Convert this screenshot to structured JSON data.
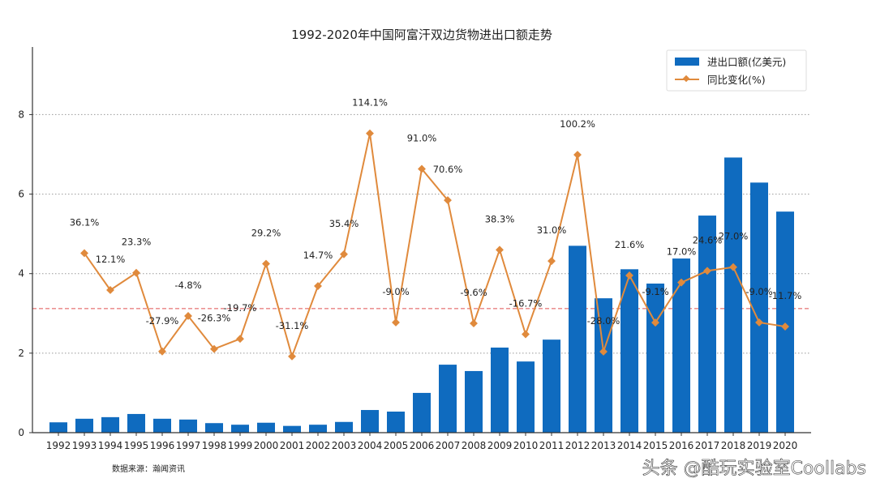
{
  "chart_data": {
    "type": "bar+line",
    "title": "1992-2020年中国阿富汗双边货物进出口额走势",
    "categories": [
      "1992",
      "1993",
      "1994",
      "1995",
      "1996",
      "1997",
      "1998",
      "1999",
      "2000",
      "2001",
      "2002",
      "2003",
      "2004",
      "2005",
      "2006",
      "2007",
      "2008",
      "2009",
      "2010",
      "2011",
      "2012",
      "2013",
      "2014",
      "2015",
      "2016",
      "2017",
      "2018",
      "2019",
      "2020"
    ],
    "series": [
      {
        "name": "进出口额(亿美元)",
        "type": "bar",
        "color": "#0f6bbf",
        "values": [
          0.26,
          0.35,
          0.39,
          0.47,
          0.35,
          0.33,
          0.24,
          0.2,
          0.25,
          0.17,
          0.2,
          0.27,
          0.57,
          0.53,
          1.0,
          1.71,
          1.55,
          2.14,
          1.79,
          2.34,
          4.7,
          3.38,
          4.11,
          3.75,
          4.38,
          5.46,
          6.92,
          6.29,
          5.56
        ]
      },
      {
        "name": "同比变化(%)",
        "type": "line",
        "color": "#e08a3c",
        "axis": "secondary-hidden",
        "values": [
          null,
          36.1,
          12.1,
          23.3,
          -27.9,
          -4.8,
          -26.3,
          -19.7,
          29.2,
          -31.1,
          14.7,
          35.4,
          114.1,
          -9.0,
          91.0,
          70.6,
          -9.6,
          38.3,
          -16.7,
          31.0,
          100.2,
          -28.0,
          21.6,
          -9.1,
          17.0,
          24.6,
          27.0,
          -9.0,
          -11.7
        ],
        "labels": [
          null,
          "36.1%",
          "12.1%",
          "23.3%",
          "-27.9%",
          "-4.8%",
          "-26.3%",
          "-19.7%",
          "29.2%",
          "-31.1%",
          "14.7%",
          "35.4%",
          "114.1%",
          "-9.0%",
          "91.0%",
          "70.6%",
          "-9.6%",
          "38.3%",
          "-16.7%",
          "31.0%",
          "100.2%",
          "-28.0%",
          "21.6%",
          "-9.1%",
          "17.0%",
          "24.6%",
          "27.0%",
          "-9.0%",
          "-11.7%"
        ]
      }
    ],
    "ylim": [
      0,
      9.7
    ],
    "yticks": [
      "0",
      "2",
      "4",
      "6",
      "8"
    ],
    "y2lim": [
      -80.8,
      170.4
    ],
    "reference_line": {
      "value_pct": 0,
      "color": "#e05050",
      "style": "dashed"
    },
    "grid": "horizontal dotted",
    "legend": "top-right",
    "xlabel": "",
    "ylabel": ""
  },
  "source_note": "数据来源：瀚闻资讯",
  "watermark": "头条 @酷玩实验室Coollabs"
}
